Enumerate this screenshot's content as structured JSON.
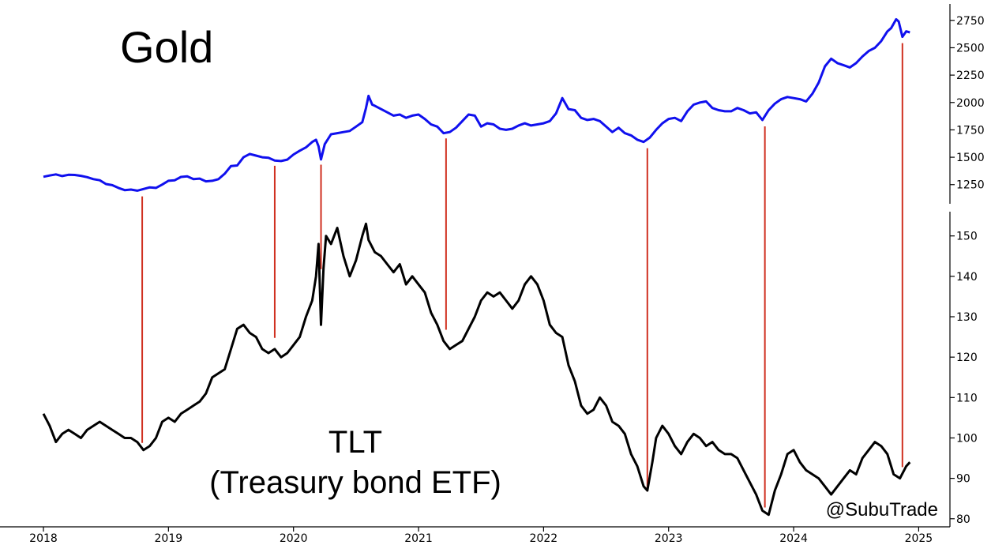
{
  "chart_data": {
    "type": "line",
    "title": "",
    "x_axis": {
      "range": [
        2018.0,
        2025.25
      ],
      "tick_labels": [
        "2018",
        "2019",
        "2020",
        "2021",
        "2022",
        "2023",
        "2024",
        "2025"
      ]
    },
    "panels": [
      {
        "annotation_lines": [
          "Gold"
        ],
        "ylim": [
          1075,
          2900
        ],
        "y_tick_labels": [
          "1250",
          "1500",
          "1750",
          "2000",
          "2250",
          "2500",
          "2750"
        ],
        "color": "#1010ee",
        "points": [
          [
            2018.0,
            1322
          ],
          [
            2018.05,
            1333
          ],
          [
            2018.1,
            1343
          ],
          [
            2018.15,
            1328
          ],
          [
            2018.2,
            1340
          ],
          [
            2018.25,
            1338
          ],
          [
            2018.3,
            1330
          ],
          [
            2018.35,
            1318
          ],
          [
            2018.4,
            1300
          ],
          [
            2018.45,
            1290
          ],
          [
            2018.5,
            1255
          ],
          [
            2018.55,
            1245
          ],
          [
            2018.6,
            1220
          ],
          [
            2018.65,
            1200
          ],
          [
            2018.7,
            1205
          ],
          [
            2018.75,
            1195
          ],
          [
            2018.8,
            1210
          ],
          [
            2018.85,
            1225
          ],
          [
            2018.9,
            1220
          ],
          [
            2018.95,
            1250
          ],
          [
            2019.0,
            1285
          ],
          [
            2019.05,
            1290
          ],
          [
            2019.1,
            1320
          ],
          [
            2019.15,
            1325
          ],
          [
            2019.2,
            1300
          ],
          [
            2019.25,
            1305
          ],
          [
            2019.3,
            1280
          ],
          [
            2019.35,
            1285
          ],
          [
            2019.4,
            1300
          ],
          [
            2019.45,
            1350
          ],
          [
            2019.5,
            1420
          ],
          [
            2019.55,
            1425
          ],
          [
            2019.6,
            1500
          ],
          [
            2019.65,
            1530
          ],
          [
            2019.7,
            1515
          ],
          [
            2019.75,
            1500
          ],
          [
            2019.8,
            1495
          ],
          [
            2019.85,
            1470
          ],
          [
            2019.9,
            1465
          ],
          [
            2019.95,
            1478
          ],
          [
            2020.0,
            1525
          ],
          [
            2020.05,
            1560
          ],
          [
            2020.1,
            1590
          ],
          [
            2020.15,
            1640
          ],
          [
            2020.18,
            1660
          ],
          [
            2020.2,
            1600
          ],
          [
            2020.22,
            1480
          ],
          [
            2020.25,
            1620
          ],
          [
            2020.3,
            1710
          ],
          [
            2020.35,
            1720
          ],
          [
            2020.4,
            1730
          ],
          [
            2020.45,
            1740
          ],
          [
            2020.5,
            1780
          ],
          [
            2020.55,
            1820
          ],
          [
            2020.58,
            1950
          ],
          [
            2020.6,
            2060
          ],
          [
            2020.63,
            1980
          ],
          [
            2020.65,
            1970
          ],
          [
            2020.7,
            1940
          ],
          [
            2020.75,
            1910
          ],
          [
            2020.8,
            1880
          ],
          [
            2020.85,
            1890
          ],
          [
            2020.9,
            1860
          ],
          [
            2020.95,
            1880
          ],
          [
            2021.0,
            1890
          ],
          [
            2021.05,
            1850
          ],
          [
            2021.1,
            1800
          ],
          [
            2021.15,
            1780
          ],
          [
            2021.2,
            1720
          ],
          [
            2021.25,
            1730
          ],
          [
            2021.3,
            1770
          ],
          [
            2021.35,
            1830
          ],
          [
            2021.4,
            1890
          ],
          [
            2021.45,
            1880
          ],
          [
            2021.5,
            1780
          ],
          [
            2021.55,
            1810
          ],
          [
            2021.6,
            1800
          ],
          [
            2021.65,
            1760
          ],
          [
            2021.7,
            1750
          ],
          [
            2021.75,
            1760
          ],
          [
            2021.8,
            1790
          ],
          [
            2021.85,
            1810
          ],
          [
            2021.9,
            1790
          ],
          [
            2021.95,
            1800
          ],
          [
            2022.0,
            1810
          ],
          [
            2022.05,
            1830
          ],
          [
            2022.1,
            1900
          ],
          [
            2022.15,
            2040
          ],
          [
            2022.2,
            1940
          ],
          [
            2022.25,
            1930
          ],
          [
            2022.3,
            1860
          ],
          [
            2022.35,
            1840
          ],
          [
            2022.4,
            1850
          ],
          [
            2022.45,
            1830
          ],
          [
            2022.5,
            1780
          ],
          [
            2022.55,
            1730
          ],
          [
            2022.6,
            1770
          ],
          [
            2022.65,
            1720
          ],
          [
            2022.7,
            1700
          ],
          [
            2022.75,
            1660
          ],
          [
            2022.8,
            1640
          ],
          [
            2022.85,
            1680
          ],
          [
            2022.9,
            1750
          ],
          [
            2022.95,
            1810
          ],
          [
            2023.0,
            1850
          ],
          [
            2023.05,
            1860
          ],
          [
            2023.1,
            1830
          ],
          [
            2023.15,
            1920
          ],
          [
            2023.2,
            1980
          ],
          [
            2023.25,
            2000
          ],
          [
            2023.3,
            2010
          ],
          [
            2023.35,
            1950
          ],
          [
            2023.4,
            1930
          ],
          [
            2023.45,
            1920
          ],
          [
            2023.5,
            1920
          ],
          [
            2023.55,
            1950
          ],
          [
            2023.6,
            1930
          ],
          [
            2023.65,
            1900
          ],
          [
            2023.7,
            1910
          ],
          [
            2023.75,
            1840
          ],
          [
            2023.8,
            1930
          ],
          [
            2023.85,
            1990
          ],
          [
            2023.9,
            2030
          ],
          [
            2023.95,
            2050
          ],
          [
            2024.0,
            2040
          ],
          [
            2024.05,
            2030
          ],
          [
            2024.1,
            2010
          ],
          [
            2024.15,
            2080
          ],
          [
            2024.2,
            2180
          ],
          [
            2024.25,
            2330
          ],
          [
            2024.3,
            2400
          ],
          [
            2024.35,
            2360
          ],
          [
            2024.4,
            2340
          ],
          [
            2024.45,
            2320
          ],
          [
            2024.5,
            2360
          ],
          [
            2024.55,
            2420
          ],
          [
            2024.6,
            2470
          ],
          [
            2024.65,
            2500
          ],
          [
            2024.7,
            2560
          ],
          [
            2024.75,
            2650
          ],
          [
            2024.78,
            2680
          ],
          [
            2024.82,
            2760
          ],
          [
            2024.84,
            2740
          ],
          [
            2024.87,
            2600
          ],
          [
            2024.9,
            2650
          ],
          [
            2024.93,
            2640
          ]
        ]
      },
      {
        "annotation_lines": [
          "TLT",
          "(Treasury bond ETF)"
        ],
        "ylim": [
          78,
          156
        ],
        "y_tick_labels": [
          "80",
          "90",
          "100",
          "110",
          "120",
          "130",
          "140",
          "150"
        ],
        "color": "#000000",
        "points": [
          [
            2018.0,
            106
          ],
          [
            2018.05,
            103
          ],
          [
            2018.1,
            99
          ],
          [
            2018.15,
            101
          ],
          [
            2018.2,
            102
          ],
          [
            2018.25,
            101
          ],
          [
            2018.3,
            100
          ],
          [
            2018.35,
            102
          ],
          [
            2018.4,
            103
          ],
          [
            2018.45,
            104
          ],
          [
            2018.5,
            103
          ],
          [
            2018.55,
            102
          ],
          [
            2018.6,
            101
          ],
          [
            2018.65,
            100
          ],
          [
            2018.7,
            100
          ],
          [
            2018.75,
            99
          ],
          [
            2018.8,
            97
          ],
          [
            2018.85,
            98
          ],
          [
            2018.9,
            100
          ],
          [
            2018.95,
            104
          ],
          [
            2019.0,
            105
          ],
          [
            2019.05,
            104
          ],
          [
            2019.1,
            106
          ],
          [
            2019.15,
            107
          ],
          [
            2019.2,
            108
          ],
          [
            2019.25,
            109
          ],
          [
            2019.3,
            111
          ],
          [
            2019.35,
            115
          ],
          [
            2019.4,
            116
          ],
          [
            2019.45,
            117
          ],
          [
            2019.5,
            122
          ],
          [
            2019.55,
            127
          ],
          [
            2019.6,
            128
          ],
          [
            2019.65,
            126
          ],
          [
            2019.7,
            125
          ],
          [
            2019.75,
            122
          ],
          [
            2019.8,
            121
          ],
          [
            2019.85,
            122
          ],
          [
            2019.9,
            120
          ],
          [
            2019.95,
            121
          ],
          [
            2020.0,
            123
          ],
          [
            2020.05,
            125
          ],
          [
            2020.1,
            130
          ],
          [
            2020.15,
            134
          ],
          [
            2020.18,
            140
          ],
          [
            2020.2,
            148
          ],
          [
            2020.22,
            128
          ],
          [
            2020.24,
            142
          ],
          [
            2020.26,
            150
          ],
          [
            2020.3,
            148
          ],
          [
            2020.35,
            152
          ],
          [
            2020.4,
            145
          ],
          [
            2020.45,
            140
          ],
          [
            2020.5,
            144
          ],
          [
            2020.55,
            150
          ],
          [
            2020.58,
            153
          ],
          [
            2020.6,
            149
          ],
          [
            2020.65,
            146
          ],
          [
            2020.7,
            145
          ],
          [
            2020.75,
            143
          ],
          [
            2020.8,
            141
          ],
          [
            2020.85,
            143
          ],
          [
            2020.9,
            138
          ],
          [
            2020.95,
            140
          ],
          [
            2021.0,
            138
          ],
          [
            2021.05,
            136
          ],
          [
            2021.1,
            131
          ],
          [
            2021.15,
            128
          ],
          [
            2021.2,
            124
          ],
          [
            2021.25,
            122
          ],
          [
            2021.3,
            123
          ],
          [
            2021.35,
            124
          ],
          [
            2021.4,
            127
          ],
          [
            2021.45,
            130
          ],
          [
            2021.5,
            134
          ],
          [
            2021.55,
            136
          ],
          [
            2021.6,
            135
          ],
          [
            2021.65,
            136
          ],
          [
            2021.7,
            134
          ],
          [
            2021.75,
            132
          ],
          [
            2021.8,
            134
          ],
          [
            2021.85,
            138
          ],
          [
            2021.9,
            140
          ],
          [
            2021.95,
            138
          ],
          [
            2022.0,
            134
          ],
          [
            2022.05,
            128
          ],
          [
            2022.1,
            126
          ],
          [
            2022.15,
            125
          ],
          [
            2022.2,
            118
          ],
          [
            2022.25,
            114
          ],
          [
            2022.3,
            108
          ],
          [
            2022.35,
            106
          ],
          [
            2022.4,
            107
          ],
          [
            2022.45,
            110
          ],
          [
            2022.5,
            108
          ],
          [
            2022.55,
            104
          ],
          [
            2022.6,
            103
          ],
          [
            2022.65,
            101
          ],
          [
            2022.7,
            96
          ],
          [
            2022.75,
            93
          ],
          [
            2022.8,
            88
          ],
          [
            2022.83,
            87
          ],
          [
            2022.87,
            94
          ],
          [
            2022.9,
            100
          ],
          [
            2022.95,
            103
          ],
          [
            2023.0,
            101
          ],
          [
            2023.05,
            98
          ],
          [
            2023.1,
            96
          ],
          [
            2023.15,
            99
          ],
          [
            2023.2,
            101
          ],
          [
            2023.25,
            100
          ],
          [
            2023.3,
            98
          ],
          [
            2023.35,
            99
          ],
          [
            2023.4,
            97
          ],
          [
            2023.45,
            96
          ],
          [
            2023.5,
            96
          ],
          [
            2023.55,
            95
          ],
          [
            2023.6,
            92
          ],
          [
            2023.65,
            89
          ],
          [
            2023.7,
            86
          ],
          [
            2023.75,
            82
          ],
          [
            2023.8,
            81
          ],
          [
            2023.85,
            87
          ],
          [
            2023.9,
            91
          ],
          [
            2023.95,
            96
          ],
          [
            2024.0,
            97
          ],
          [
            2024.05,
            94
          ],
          [
            2024.1,
            92
          ],
          [
            2024.15,
            91
          ],
          [
            2024.2,
            90
          ],
          [
            2024.25,
            88
          ],
          [
            2024.3,
            86
          ],
          [
            2024.35,
            88
          ],
          [
            2024.4,
            90
          ],
          [
            2024.45,
            92
          ],
          [
            2024.5,
            91
          ],
          [
            2024.55,
            95
          ],
          [
            2024.6,
            97
          ],
          [
            2024.65,
            99
          ],
          [
            2024.7,
            98
          ],
          [
            2024.75,
            96
          ],
          [
            2024.8,
            91
          ],
          [
            2024.85,
            90
          ],
          [
            2024.9,
            93
          ],
          [
            2024.93,
            94
          ]
        ]
      }
    ],
    "event_lines": [
      {
        "date": 2018.79,
        "tlt": 98,
        "gold": 1200
      },
      {
        "date": 2019.85,
        "tlt": 124,
        "gold": 1480
      },
      {
        "date": 2020.22,
        "tlt": 141,
        "gold": 1490
      },
      {
        "date": 2021.22,
        "tlt": 126,
        "gold": 1730
      },
      {
        "date": 2022.83,
        "tlt": 86,
        "gold": 1640
      },
      {
        "date": 2023.77,
        "tlt": 82,
        "gold": 1840
      },
      {
        "date": 2024.87,
        "tlt": 92,
        "gold": 2600
      }
    ],
    "event_line_color": "#d03020",
    "credit": "@SubuTrade"
  }
}
